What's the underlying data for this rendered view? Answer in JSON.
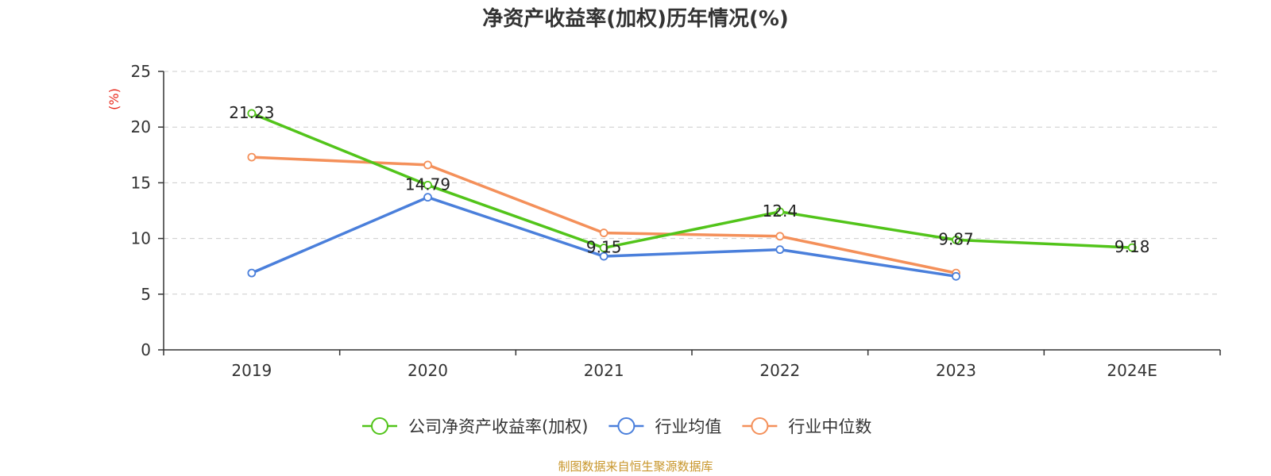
{
  "chart_data": {
    "type": "line",
    "title": "净资产收益率(加权)历年情况(%)",
    "ylabel": "(%)",
    "xlabel": "",
    "ylim": [
      0,
      25
    ],
    "yticks": [
      0,
      5,
      10,
      15,
      20,
      25
    ],
    "categories": [
      "2019",
      "2020",
      "2021",
      "2022",
      "2023",
      "2024E"
    ],
    "grid": true,
    "legend_position": "bottom-center",
    "series": [
      {
        "name": "公司净资产收益率(加权)",
        "color": "#52c41a",
        "values": [
          21.23,
          14.79,
          9.15,
          12.4,
          9.87,
          9.18
        ],
        "labels": [
          "21.23",
          "14.79",
          "9.15",
          "12.4",
          "9.87",
          "9.18"
        ]
      },
      {
        "name": "行业均值",
        "color": "#4a7fdb",
        "values": [
          6.9,
          13.7,
          8.4,
          9.0,
          6.6,
          null
        ],
        "labels": null
      },
      {
        "name": "行业中位数",
        "color": "#f4905a",
        "values": [
          17.3,
          16.6,
          10.5,
          10.2,
          6.9,
          null
        ],
        "labels": null
      }
    ],
    "ylabel_color": "#e8291c",
    "source": "制图数据来自恒生聚源数据库",
    "source_color": "#c8962b"
  }
}
